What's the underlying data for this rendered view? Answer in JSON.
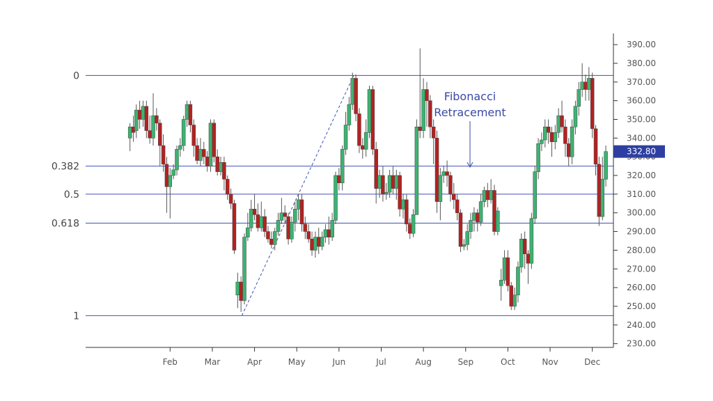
{
  "chart_data": {
    "type": "candlestick",
    "x_ticks": [
      "Feb",
      "Mar",
      "Apr",
      "May",
      "Jun",
      "Jul",
      "Aug",
      "Sep",
      "Oct",
      "Nov",
      "Dec"
    ],
    "y_ticks": [
      "230.00",
      "240.00",
      "250.00",
      "260.00",
      "270.00",
      "280.00",
      "290.00",
      "300.00",
      "310.00",
      "320.00",
      "330.00",
      "340.00",
      "350.00",
      "360.00",
      "370.00",
      "380.00",
      "390.00"
    ],
    "ylim": [
      228,
      396
    ],
    "last_price": "332.80",
    "last_price_value": 332.8,
    "fib_levels": [
      {
        "label": "0",
        "value": 373.5
      },
      {
        "label": "0.382",
        "value": 325.0
      },
      {
        "label": "0.5",
        "value": 310.0
      },
      {
        "label": "0.618",
        "value": 294.5
      },
      {
        "label": "1",
        "value": 245.0
      }
    ],
    "swing_line": {
      "from": {
        "month": 3.7,
        "price": 245.0
      },
      "to": {
        "month": 6.35,
        "price": 373.5
      }
    },
    "annotation": {
      "lines": [
        "Fibonacci",
        "Retracement"
      ]
    },
    "candles": [
      [
        1.05,
        340,
        346,
        348,
        333
      ],
      [
        1.13,
        346,
        343,
        352,
        338
      ],
      [
        1.2,
        344,
        355,
        358,
        340
      ],
      [
        1.28,
        355,
        350,
        360,
        345
      ],
      [
        1.36,
        350,
        357,
        360,
        346
      ],
      [
        1.44,
        357,
        344,
        360,
        340
      ],
      [
        1.52,
        344,
        340,
        352,
        337
      ],
      [
        1.6,
        340,
        352,
        364,
        336
      ],
      [
        1.68,
        352,
        348,
        356,
        344
      ],
      [
        1.76,
        348,
        336,
        350,
        325
      ],
      [
        1.84,
        336,
        326,
        342,
        322
      ],
      [
        1.92,
        326,
        314,
        330,
        300
      ],
      [
        2.0,
        314,
        320,
        324,
        297
      ],
      [
        2.08,
        320,
        323,
        326,
        318
      ],
      [
        2.16,
        323,
        334,
        336,
        320
      ],
      [
        2.24,
        334,
        336,
        340,
        330
      ],
      [
        2.32,
        336,
        350,
        352,
        333
      ],
      [
        2.4,
        350,
        358,
        360,
        346
      ],
      [
        2.48,
        358,
        347,
        360,
        343
      ],
      [
        2.56,
        347,
        336,
        350,
        330
      ],
      [
        2.64,
        336,
        328,
        340,
        326
      ],
      [
        2.72,
        328,
        334,
        340,
        325
      ],
      [
        2.8,
        334,
        330,
        338,
        326
      ],
      [
        2.88,
        330,
        325,
        333,
        322
      ],
      [
        2.96,
        325,
        348,
        350,
        322
      ],
      [
        3.04,
        348,
        330,
        350,
        327
      ],
      [
        3.12,
        330,
        322,
        334,
        320
      ],
      [
        3.2,
        322,
        327,
        330,
        320
      ],
      [
        3.28,
        327,
        318,
        330,
        312
      ],
      [
        3.36,
        318,
        310,
        320,
        307
      ],
      [
        3.44,
        310,
        305,
        313,
        302
      ],
      [
        3.52,
        305,
        280,
        307,
        278
      ],
      [
        3.6,
        256,
        263,
        268,
        249
      ],
      [
        3.68,
        263,
        253,
        266,
        247
      ],
      [
        3.76,
        253,
        287,
        289,
        251
      ],
      [
        3.84,
        287,
        292,
        300,
        285
      ],
      [
        3.92,
        292,
        302,
        307,
        290
      ],
      [
        4.0,
        302,
        299,
        310,
        296
      ],
      [
        4.08,
        299,
        292,
        305,
        290
      ],
      [
        4.16,
        292,
        298,
        306,
        290
      ],
      [
        4.24,
        298,
        290,
        302,
        287
      ],
      [
        4.32,
        290,
        286,
        293,
        284
      ],
      [
        4.4,
        286,
        283,
        290,
        281
      ],
      [
        4.48,
        283,
        290,
        292,
        280
      ],
      [
        4.56,
        290,
        296,
        300,
        288
      ],
      [
        4.64,
        296,
        300,
        308,
        294
      ],
      [
        4.72,
        300,
        298,
        304,
        294
      ],
      [
        4.8,
        298,
        286,
        300,
        283
      ],
      [
        4.88,
        286,
        295,
        298,
        284
      ],
      [
        4.96,
        295,
        302,
        306,
        290
      ],
      [
        5.04,
        302,
        307,
        310,
        296
      ],
      [
        5.12,
        307,
        294,
        310,
        290
      ],
      [
        5.2,
        294,
        290,
        298,
        286
      ],
      [
        5.28,
        290,
        286,
        294,
        284
      ],
      [
        5.36,
        286,
        280,
        290,
        277
      ],
      [
        5.44,
        280,
        287,
        290,
        276
      ],
      [
        5.52,
        287,
        282,
        292,
        278
      ],
      [
        5.6,
        282,
        287,
        290,
        280
      ],
      [
        5.68,
        287,
        291,
        294,
        284
      ],
      [
        5.76,
        291,
        287,
        298,
        283
      ],
      [
        5.84,
        287,
        296,
        300,
        285
      ],
      [
        5.92,
        296,
        320,
        322,
        294
      ],
      [
        6.0,
        320,
        316,
        324,
        312
      ],
      [
        6.08,
        316,
        334,
        336,
        312
      ],
      [
        6.16,
        334,
        347,
        354,
        331
      ],
      [
        6.24,
        347,
        358,
        362,
        344
      ],
      [
        6.32,
        358,
        372,
        375,
        355
      ],
      [
        6.4,
        372,
        353,
        374,
        349
      ],
      [
        6.48,
        353,
        336,
        356,
        332
      ],
      [
        6.56,
        336,
        334,
        340,
        329
      ],
      [
        6.64,
        334,
        343,
        350,
        330
      ],
      [
        6.72,
        343,
        366,
        368,
        340
      ],
      [
        6.8,
        366,
        334,
        368,
        331
      ],
      [
        6.88,
        334,
        313,
        338,
        305
      ],
      [
        6.96,
        313,
        320,
        323,
        308
      ],
      [
        7.04,
        320,
        310,
        325,
        306
      ],
      [
        7.12,
        310,
        311,
        316,
        307
      ],
      [
        7.2,
        311,
        320,
        323,
        308
      ],
      [
        7.28,
        320,
        313,
        325,
        310
      ],
      [
        7.36,
        313,
        320,
        323,
        307
      ],
      [
        7.44,
        320,
        302,
        322,
        298
      ],
      [
        7.52,
        302,
        307,
        310,
        297
      ],
      [
        7.6,
        307,
        294,
        310,
        290
      ],
      [
        7.68,
        294,
        289,
        297,
        286
      ],
      [
        7.76,
        289,
        299,
        302,
        287
      ],
      [
        7.84,
        299,
        346,
        350,
        326
      ],
      [
        7.92,
        346,
        344,
        388,
        340
      ],
      [
        8.0,
        344,
        366,
        372,
        340
      ],
      [
        8.08,
        366,
        360,
        370,
        346
      ],
      [
        8.16,
        360,
        346,
        363,
        340
      ],
      [
        8.24,
        346,
        340,
        350,
        326
      ],
      [
        8.32,
        340,
        306,
        344,
        300
      ],
      [
        8.4,
        306,
        320,
        324,
        296
      ],
      [
        8.48,
        320,
        322,
        325,
        316
      ],
      [
        8.56,
        322,
        320,
        328,
        314
      ],
      [
        8.64,
        320,
        310,
        322,
        306
      ],
      [
        8.72,
        310,
        307,
        316,
        302
      ],
      [
        8.8,
        307,
        300,
        310,
        296
      ],
      [
        8.88,
        300,
        282,
        302,
        279
      ],
      [
        8.96,
        282,
        283,
        286,
        280
      ],
      [
        9.04,
        283,
        290,
        294,
        280
      ],
      [
        9.12,
        290,
        296,
        300,
        286
      ],
      [
        9.2,
        296,
        300,
        303,
        290
      ],
      [
        9.28,
        300,
        295,
        302,
        290
      ],
      [
        9.36,
        295,
        306,
        310,
        293
      ],
      [
        9.44,
        306,
        312,
        314,
        303
      ],
      [
        9.52,
        312,
        307,
        316,
        303
      ],
      [
        9.6,
        307,
        312,
        318,
        305
      ],
      [
        9.68,
        312,
        290,
        315,
        288
      ],
      [
        9.76,
        290,
        301,
        303,
        288
      ],
      [
        9.84,
        261,
        264,
        270,
        253
      ],
      [
        9.92,
        264,
        276,
        280,
        262
      ],
      [
        10.0,
        276,
        261,
        280,
        258
      ],
      [
        10.08,
        261,
        250,
        263,
        248
      ],
      [
        10.16,
        250,
        256,
        260,
        248
      ],
      [
        10.24,
        256,
        271,
        274,
        252
      ],
      [
        10.32,
        271,
        286,
        289,
        268
      ],
      [
        10.4,
        286,
        278,
        290,
        270
      ],
      [
        10.48,
        278,
        273,
        280,
        262
      ],
      [
        10.56,
        273,
        297,
        300,
        270
      ],
      [
        10.64,
        297,
        322,
        325,
        294
      ],
      [
        10.72,
        322,
        337,
        340,
        318
      ],
      [
        10.8,
        337,
        339,
        343,
        333
      ],
      [
        10.88,
        339,
        346,
        350,
        335
      ],
      [
        10.96,
        346,
        343,
        350,
        337
      ],
      [
        11.04,
        343,
        338,
        346,
        330
      ],
      [
        11.12,
        338,
        343,
        347,
        334
      ],
      [
        11.2,
        343,
        352,
        356,
        340
      ],
      [
        11.28,
        352,
        346,
        360,
        343
      ],
      [
        11.36,
        346,
        337,
        350,
        330
      ],
      [
        11.44,
        337,
        330,
        340,
        325
      ],
      [
        11.52,
        330,
        346,
        350,
        326
      ],
      [
        11.6,
        346,
        357,
        360,
        342
      ],
      [
        11.68,
        357,
        366,
        370,
        352
      ],
      [
        11.76,
        366,
        370,
        380,
        362
      ],
      [
        11.84,
        370,
        366,
        374,
        360
      ],
      [
        11.92,
        366,
        372,
        378,
        360
      ],
      [
        12.0,
        372,
        345,
        375,
        340
      ],
      [
        12.08,
        345,
        326,
        347,
        320
      ],
      [
        12.16,
        326,
        298,
        330,
        293
      ],
      [
        12.24,
        298,
        318,
        330,
        296
      ],
      [
        12.32,
        318,
        332.8,
        336,
        314
      ]
    ]
  }
}
